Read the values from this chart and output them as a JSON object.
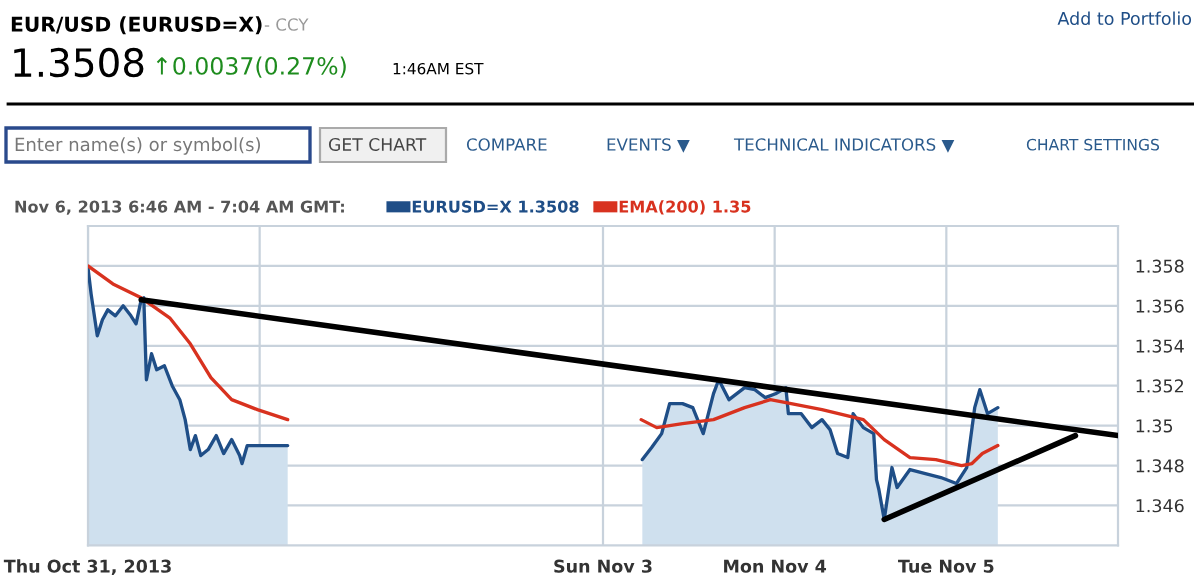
{
  "chart_data": {
    "type": "line",
    "title": "EUR/USD (EURUSD=X)",
    "subtitle": "- CCY",
    "legend_title": "Nov 6, 2013 6:46 AM - 7:04 AM GMT:",
    "annotations": [
      "1.3508",
      "↑0.0037(0.27%)",
      "1:46AM EST",
      "Add to Portfolio",
      "Enter name(s) or symbol(s)",
      "GET CHART",
      "COMPARE",
      "EVENTS ▼",
      "TECHNICAL INDICATORS ▼",
      "CHART SETTINGS"
    ],
    "xlim": [
      "2013-10-31",
      "2013-11-06"
    ],
    "xticks": [
      {
        "value": "2013-10-31",
        "label": "Thu Oct 31, 2013"
      },
      {
        "value": "2013-11-01",
        "label": null
      },
      {
        "value": "2013-11-03",
        "label": "Sun Nov 3"
      },
      {
        "value": "2013-11-04",
        "label": "Mon Nov 4"
      },
      {
        "value": "2013-11-05",
        "label": "Tue Nov 5"
      }
    ],
    "ylim": [
      1.344,
      1.36
    ],
    "yticks": [
      1.346,
      1.348,
      1.35,
      1.352,
      1.354,
      1.356,
      1.358
    ],
    "grid": true,
    "legend": "top",
    "marker": "none",
    "line_style": "solid",
    "series": [
      {
        "name": "EURUSD=X 1.3508",
        "type": "area",
        "color": "#1f4e87",
        "x": [
          "2013-10-31T00:00",
          "2013-10-31T00:26",
          "2013-10-31T01:18",
          "2013-10-31T02:01",
          "2013-10-31T02:46",
          "2013-10-31T03:50",
          "2013-10-31T04:55",
          "2013-10-31T06:00",
          "2013-10-31T06:43",
          "2013-10-31T07:26",
          "2013-10-31T07:48",
          "2013-10-31T08:10",
          "2013-10-31T08:53",
          "2013-10-31T09:36",
          "2013-10-31T10:41",
          "2013-10-31T11:46",
          "2013-10-31T12:50",
          "2013-10-31T13:35",
          "2013-10-31T14:18",
          "2013-10-31T15:01",
          "2013-10-31T15:46",
          "2013-10-31T16:48",
          "2013-10-31T17:56",
          "2013-10-31T18:58",
          "2013-10-31T20:05",
          "2013-10-31T21:12",
          "2013-10-31T21:32",
          "2013-10-31T22:16",
          "2013-10-31T23:41",
          "2013-11-01T03:55",
          "2013-11-01T16:48",
          "2013-11-03T05:30",
          "2013-11-03T06:48",
          "2013-11-03T08:12",
          "2013-11-03T09:19",
          "2013-11-03T11:07",
          "2013-11-03T12:33",
          "2013-11-03T14:01",
          "2013-11-03T15:27",
          "2013-11-03T16:11",
          "2013-11-03T17:37",
          "2013-11-03T19:48",
          "2013-11-03T21:13",
          "2013-11-03T22:41",
          "2013-11-04T00:07",
          "2013-11-04T01:34",
          "2013-11-04T01:55",
          "2013-11-04T03:43",
          "2013-11-04T05:11",
          "2013-11-04T06:37",
          "2013-11-04T07:44",
          "2013-11-04T08:48",
          "2013-11-04T10:13",
          "2013-11-04T10:58",
          "2013-11-04T12:24",
          "2013-11-04T13:51",
          "2013-11-04T14:14",
          "2013-11-04T14:34",
          "2013-11-04T15:19",
          "2013-11-04T16:24",
          "2013-11-04T17:07",
          "2013-11-04T18:55",
          "2013-11-04T21:04",
          "2013-11-04T23:14",
          "2013-11-05T01:25",
          "2013-11-05T02:51",
          "2013-11-05T03:58",
          "2013-11-05T04:41",
          "2013-11-05T05:46",
          "2013-11-05T07:12"
        ],
        "values": [
          1.3579,
          1.3566,
          1.3545,
          1.3553,
          1.3558,
          1.3555,
          1.356,
          1.3555,
          1.3551,
          1.3563,
          1.3564,
          1.3523,
          1.3536,
          1.3528,
          1.353,
          1.352,
          1.3513,
          1.3503,
          1.3488,
          1.3495,
          1.3485,
          1.3488,
          1.3495,
          1.3486,
          1.3493,
          1.3485,
          1.3481,
          1.349,
          1.349,
          1.349,
          null,
          1.3483,
          1.3489,
          1.3496,
          1.3511,
          1.3511,
          1.3509,
          1.3496,
          1.3516,
          1.3523,
          1.3513,
          1.3519,
          1.3518,
          1.3514,
          1.3516,
          1.3519,
          1.3506,
          1.3506,
          1.3499,
          1.3503,
          1.3498,
          1.3486,
          1.3484,
          1.3506,
          1.3499,
          1.3496,
          1.3473,
          1.3468,
          1.3453,
          1.3479,
          1.3469,
          1.3478,
          1.3476,
          1.3474,
          1.3471,
          1.3479,
          1.3509,
          1.3518,
          1.3506,
          1.3509
        ]
      },
      {
        "name": "EMA(200) 1.35",
        "color": "#d8321f",
        "x": [
          "2013-10-31T00:00",
          "2013-10-31T03:29",
          "2013-10-31T07:26",
          "2013-10-31T11:25",
          "2013-10-31T14:18",
          "2013-10-31T17:11",
          "2013-10-31T20:05",
          "2013-10-31T23:41",
          "2013-11-01T03:55",
          "2013-11-01T16:48",
          "2013-11-03T05:20",
          "2013-11-03T07:31",
          "2013-11-03T11:07",
          "2013-11-03T15:27",
          "2013-11-03T16:11",
          "2013-11-03T19:48",
          "2013-11-03T23:24",
          "2013-11-04T02:18",
          "2013-11-04T06:37",
          "2013-11-04T12:24",
          "2013-11-04T15:19",
          "2013-11-04T18:55",
          "2013-11-04T22:32",
          "2013-11-05T02:08",
          "2013-11-05T03:35",
          "2013-11-05T05:02",
          "2013-11-05T07:12"
        ],
        "values": [
          1.358,
          1.3571,
          1.3564,
          1.3554,
          1.3541,
          1.3524,
          1.3513,
          1.3508,
          1.3503,
          null,
          1.3503,
          1.3499,
          1.3501,
          1.3503,
          1.3504,
          1.3509,
          1.3513,
          1.3511,
          1.3508,
          1.3503,
          1.3493,
          1.3484,
          1.3483,
          1.348,
          1.3481,
          1.3486,
          1.349
        ]
      },
      {
        "color": "#000000",
        "x": [
          "2013-10-31T07:26",
          "2013-11-06T00:00"
        ],
        "values": [
          1.3563,
          1.3495
        ]
      },
      {
        "color": "#000000",
        "x": [
          "2013-11-04T15:19",
          "2013-11-05T18:03"
        ],
        "values": [
          1.3453,
          1.3495
        ]
      }
    ]
  }
}
